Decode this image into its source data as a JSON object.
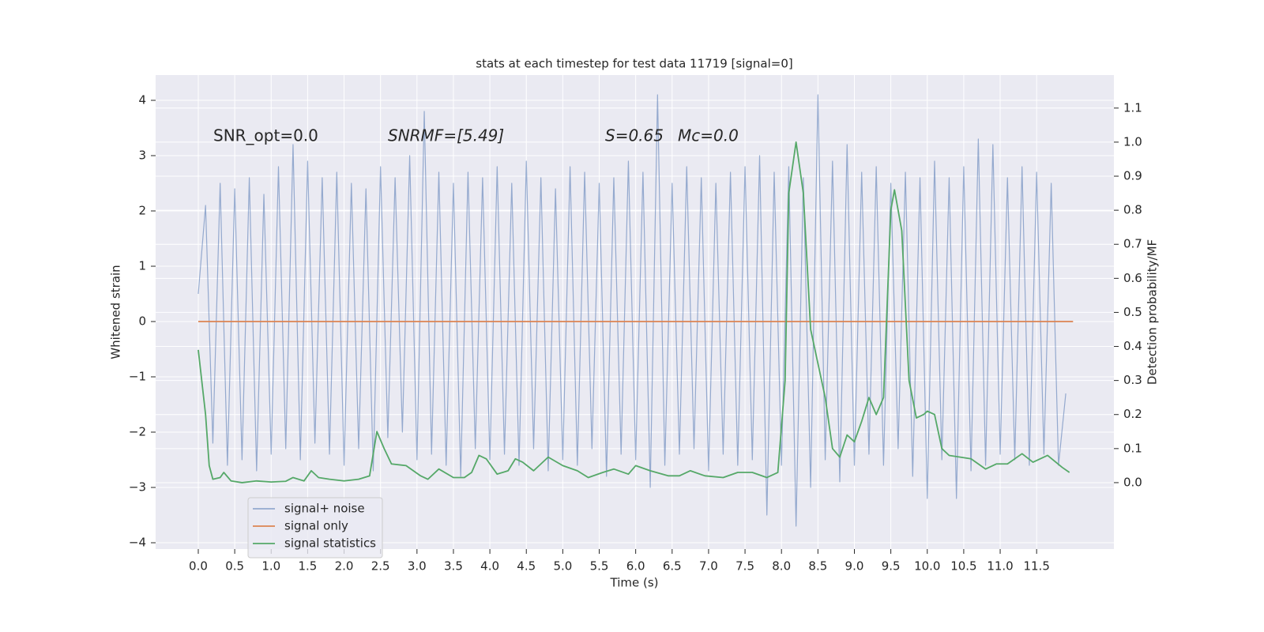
{
  "chart_data": {
    "type": "line",
    "title": "stats at each timestep for test data 11719 [signal=0]",
    "xlabel": "Time (s)",
    "ylabel": "Whitened strain",
    "y2label": "Detection probability/MF",
    "annotations": [
      "SNR_opt=0.0",
      "SNRMF=[5.49]",
      "S=0.65",
      "Mc=0.0"
    ],
    "xlim": [
      -0.585,
      12.56
    ],
    "ylim": [
      -4.114,
      4.457
    ],
    "y2lim": [
      -0.195,
      1.197
    ],
    "xticks": [
      {
        "value": 0,
        "label": "0.0"
      },
      0.5,
      {
        "value": 1,
        "label": "1.0"
      },
      1.5,
      {
        "value": 2,
        "label": "2.0"
      },
      2.5,
      {
        "value": 3,
        "label": "3.0"
      },
      3.5,
      {
        "value": 4,
        "label": "4.0"
      },
      4.5,
      {
        "value": 5,
        "label": "5.0"
      },
      5.5,
      {
        "value": 6,
        "label": "6.0"
      },
      6.5,
      {
        "value": 7,
        "label": "7.0"
      },
      7.5,
      {
        "value": 8,
        "label": "8.0"
      },
      8.5,
      {
        "value": 9,
        "label": "9.0"
      },
      9.5,
      {
        "value": 10,
        "label": "10.0"
      },
      10.5,
      {
        "value": 11,
        "label": "11.0"
      },
      11.5
    ],
    "yticks": [
      {
        "value": -4,
        "label": "−4"
      },
      {
        "value": -3,
        "label": "−3"
      },
      {
        "value": -2,
        "label": "−2"
      },
      {
        "value": -1,
        "label": "−1"
      },
      0,
      1,
      2,
      3,
      4
    ],
    "y2ticks": [
      {
        "value": 0,
        "label": "0.0"
      },
      0.1,
      0.2,
      0.3,
      0.4,
      0.5,
      0.6,
      0.7,
      0.8,
      0.9,
      {
        "value": 1,
        "label": "1.0"
      },
      1.1
    ],
    "grid": true,
    "legend": "lower left",
    "series": [
      {
        "name": "signal+ noise",
        "color": "#4c72b0",
        "x": [
          0.0,
          0.1,
          0.2,
          0.3,
          0.4,
          0.5,
          0.6,
          0.7,
          0.8,
          0.9,
          1.0,
          1.1,
          1.2,
          1.3,
          1.4,
          1.5,
          1.6,
          1.7,
          1.8,
          1.9,
          2.0,
          2.1,
          2.2,
          2.3,
          2.4,
          2.5,
          2.6,
          2.7,
          2.8,
          2.9,
          3.0,
          3.1,
          3.2,
          3.3,
          3.4,
          3.5,
          3.6,
          3.7,
          3.8,
          3.9,
          4.0,
          4.1,
          4.2,
          4.3,
          4.4,
          4.5,
          4.6,
          4.7,
          4.8,
          4.9,
          5.0,
          5.1,
          5.2,
          5.3,
          5.4,
          5.5,
          5.6,
          5.7,
          5.8,
          5.9,
          6.0,
          6.1,
          6.2,
          6.3,
          6.4,
          6.5,
          6.6,
          6.7,
          6.8,
          6.9,
          7.0,
          7.1,
          7.2,
          7.3,
          7.4,
          7.5,
          7.6,
          7.7,
          7.8,
          7.9,
          8.0,
          8.1,
          8.2,
          8.3,
          8.4,
          8.5,
          8.6,
          8.7,
          8.8,
          8.9,
          9.0,
          9.1,
          9.2,
          9.3,
          9.4,
          9.5,
          9.6,
          9.7,
          9.8,
          9.9,
          10.0,
          10.1,
          10.2,
          10.3,
          10.4,
          10.5,
          10.6,
          10.7,
          10.8,
          10.9,
          11.0,
          11.1,
          11.2,
          11.3,
          11.4,
          11.5,
          11.6,
          11.7,
          11.8,
          11.9
        ],
        "values": [
          0.5,
          2.1,
          -2.2,
          2.5,
          -2.6,
          2.4,
          -2.5,
          2.6,
          -2.7,
          2.3,
          -2.4,
          2.8,
          -2.3,
          3.2,
          -2.5,
          2.9,
          -2.2,
          2.6,
          -2.4,
          2.7,
          -2.6,
          2.5,
          -2.3,
          2.4,
          -2.7,
          2.8,
          -2.1,
          2.6,
          -2.0,
          3.0,
          -2.5,
          3.8,
          -2.4,
          2.7,
          -2.6,
          2.5,
          -2.8,
          2.7,
          -2.3,
          2.6,
          -2.5,
          2.8,
          -2.4,
          2.5,
          -2.6,
          2.9,
          -2.3,
          2.6,
          -2.7,
          2.4,
          -2.5,
          2.8,
          -2.6,
          2.7,
          -2.3,
          2.5,
          -2.8,
          2.6,
          -2.4,
          2.9,
          -2.5,
          2.7,
          -3.0,
          4.1,
          -2.6,
          2.5,
          -2.4,
          2.8,
          -2.3,
          2.6,
          -2.7,
          2.5,
          -2.4,
          2.7,
          -2.6,
          2.8,
          -2.5,
          3.0,
          -3.5,
          2.7,
          -2.6,
          2.8,
          -3.7,
          2.6,
          -3.0,
          4.1,
          -2.5,
          2.9,
          -2.9,
          3.2,
          -2.6,
          2.7,
          -2.4,
          2.8,
          -2.6,
          2.5,
          -2.3,
          2.7,
          -2.8,
          2.6,
          -3.2,
          2.9,
          -2.5,
          2.6,
          -3.2,
          2.8,
          -2.7,
          3.3,
          -2.6,
          3.2,
          -2.4,
          2.6,
          -2.5,
          2.8,
          -2.6,
          2.7,
          -2.4,
          2.5,
          -2.6,
          -1.3
        ]
      },
      {
        "name": "signal only",
        "color": "#dd8452",
        "x": [
          0,
          12
        ],
        "values": [
          0,
          0
        ]
      },
      {
        "name": "signal statistics",
        "color": "#55a868",
        "axis": "y2",
        "x": [
          0,
          0.1,
          0.15,
          0.2,
          0.3,
          0.35,
          0.45,
          0.6,
          0.8,
          1.0,
          1.2,
          1.3,
          1.45,
          1.55,
          1.65,
          1.8,
          2.0,
          2.2,
          2.35,
          2.45,
          2.55,
          2.65,
          2.85,
          3.05,
          3.15,
          3.3,
          3.5,
          3.65,
          3.75,
          3.85,
          3.95,
          4.1,
          4.25,
          4.35,
          4.45,
          4.6,
          4.8,
          5.0,
          5.2,
          5.35,
          5.55,
          5.7,
          5.9,
          6.0,
          6.2,
          6.45,
          6.6,
          6.75,
          6.95,
          7.2,
          7.4,
          7.6,
          7.8,
          7.95,
          8.05,
          8.1,
          8.2,
          8.3,
          8.4,
          8.5,
          8.6,
          8.7,
          8.8,
          8.9,
          9.0,
          9.1,
          9.2,
          9.3,
          9.4,
          9.5,
          9.55,
          9.65,
          9.75,
          9.85,
          9.95,
          10.0,
          10.1,
          10.2,
          10.3,
          10.45,
          10.6,
          10.8,
          10.95,
          11.1,
          11.3,
          11.45,
          11.65,
          11.85,
          11.95
        ],
        "values": [
          0.39,
          0.2,
          0.05,
          0.01,
          0.015,
          0.03,
          0.005,
          0.0,
          0.005,
          0.002,
          0.004,
          0.015,
          0.005,
          0.035,
          0.015,
          0.01,
          0.005,
          0.01,
          0.02,
          0.15,
          0.1,
          0.055,
          0.05,
          0.02,
          0.01,
          0.04,
          0.015,
          0.015,
          0.03,
          0.08,
          0.07,
          0.025,
          0.035,
          0.07,
          0.06,
          0.035,
          0.075,
          0.05,
          0.035,
          0.015,
          0.03,
          0.04,
          0.025,
          0.05,
          0.035,
          0.02,
          0.02,
          0.035,
          0.02,
          0.015,
          0.03,
          0.03,
          0.015,
          0.03,
          0.3,
          0.85,
          1.0,
          0.85,
          0.45,
          0.35,
          0.25,
          0.1,
          0.075,
          0.14,
          0.12,
          0.18,
          0.25,
          0.2,
          0.25,
          0.8,
          0.86,
          0.74,
          0.3,
          0.19,
          0.2,
          0.21,
          0.2,
          0.1,
          0.08,
          0.075,
          0.07,
          0.04,
          0.055,
          0.055,
          0.085,
          0.06,
          0.08,
          0.045,
          0.03
        ]
      }
    ]
  }
}
